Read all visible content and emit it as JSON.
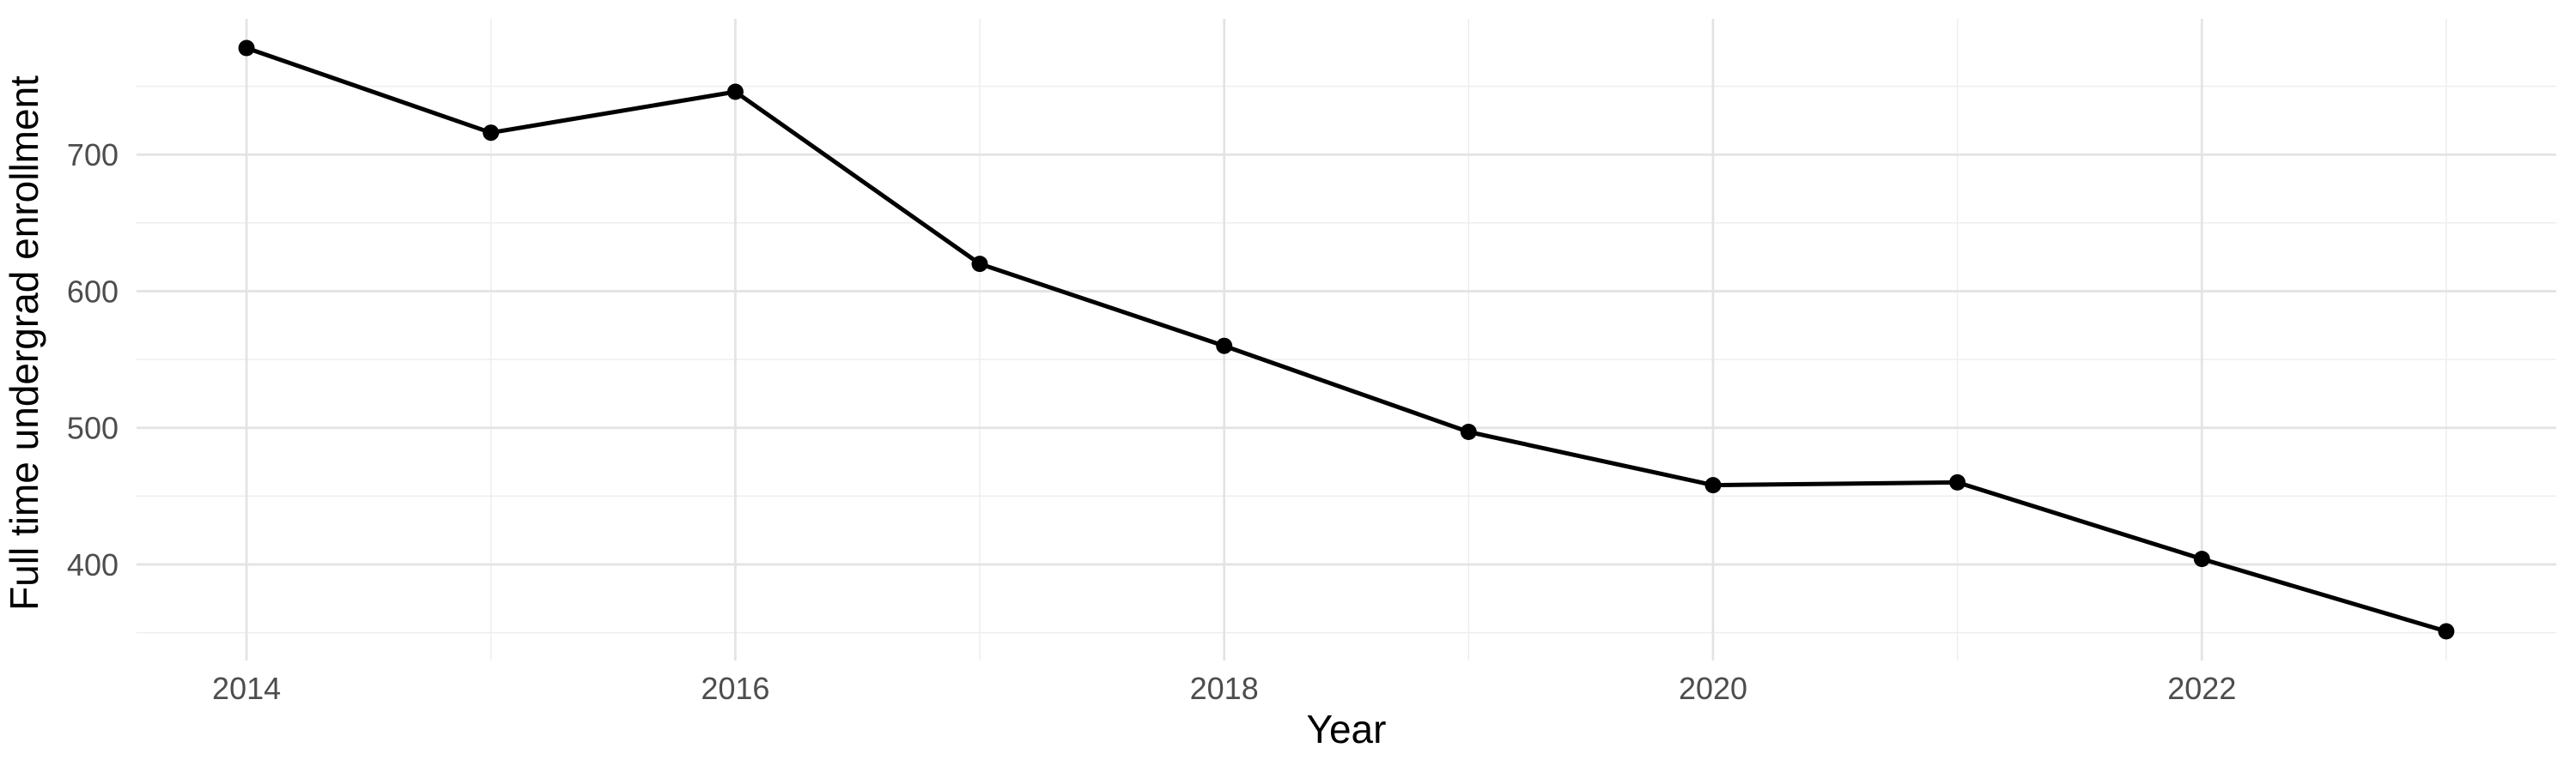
{
  "chart_data": {
    "type": "line",
    "x": [
      2014,
      2015,
      2016,
      2017,
      2018,
      2019,
      2020,
      2021,
      2022,
      2023
    ],
    "values": [
      778,
      716,
      746,
      620,
      560,
      497,
      458,
      460,
      404,
      351
    ],
    "series": [
      {
        "name": "Full time undergrad enrollment",
        "values": [
          778,
          716,
          746,
          620,
          560,
          497,
          458,
          460,
          404,
          351
        ]
      }
    ],
    "title": "",
    "xlabel": "Year",
    "ylabel": "Full time undergrad enrollment",
    "x_ticks": {
      "breaks": [
        2014,
        2016,
        2018,
        2020,
        2022
      ],
      "labels": [
        "2014",
        "2016",
        "2018",
        "2020",
        "2022"
      ]
    },
    "x_minor_breaks": [
      2015,
      2017,
      2019,
      2021,
      2023
    ],
    "y_ticks": {
      "breaks": [
        400,
        500,
        600,
        700
      ],
      "labels": [
        "400",
        "500",
        "600",
        "700"
      ]
    },
    "y_minor_breaks": [
      350,
      450,
      550,
      650,
      750
    ],
    "xlim": [
      2013.55,
      2023.45
    ],
    "ylim": [
      329.65,
      799.35
    ],
    "grid": "major+minor",
    "legend": "none",
    "marker": "filled-circle",
    "colors": {
      "line": "#000000",
      "point": "#000000",
      "background": "#ffffff",
      "grid_major": "#e3e3e3",
      "grid_minor": "#ededed",
      "tick_label": "#4d4d4d",
      "axis_title": "#000000"
    }
  }
}
